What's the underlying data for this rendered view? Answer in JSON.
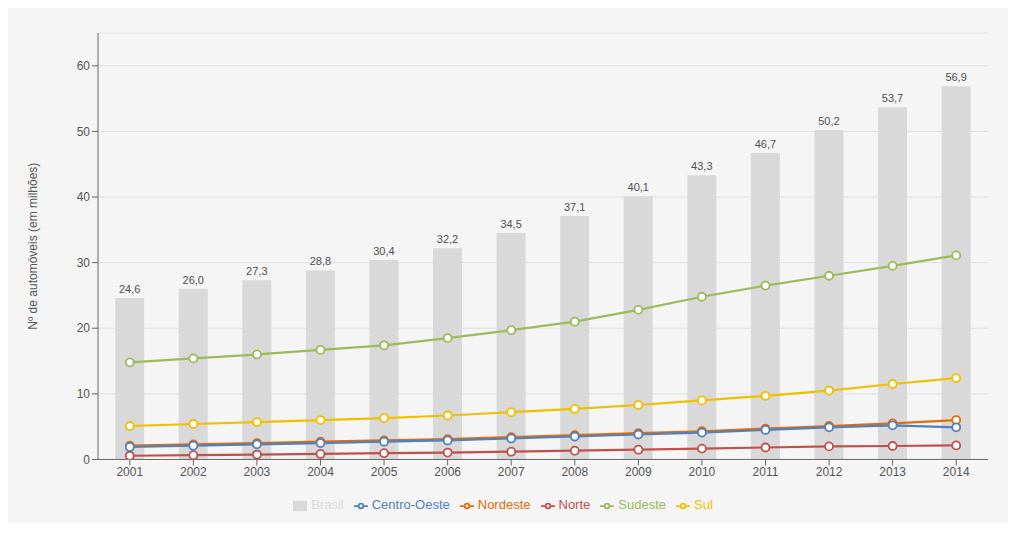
{
  "chart_data": {
    "type": "bar",
    "ylabel": "Nº de automóveis (em milhões)",
    "categories": [
      "2001",
      "2002",
      "2003",
      "2004",
      "2005",
      "2006",
      "2007",
      "2008",
      "2009",
      "2010",
      "2011",
      "2012",
      "2013",
      "2014"
    ],
    "series": [
      {
        "name": "Brasil",
        "type": "bar",
        "color": "#d9d9d9",
        "values": [
          24.6,
          26.0,
          27.3,
          28.8,
          30.4,
          32.2,
          34.5,
          37.1,
          40.1,
          43.3,
          46.7,
          50.2,
          53.7,
          56.9
        ],
        "value_labels": [
          "24,6",
          "26,0",
          "27,3",
          "28,8",
          "30,4",
          "32,2",
          "34,5",
          "37,1",
          "40,1",
          "43,3",
          "46,7",
          "50,2",
          "53,7",
          "56,9"
        ]
      },
      {
        "name": "Norte",
        "type": "line",
        "color": "#c0504d",
        "marker": "circle",
        "values": [
          0.56,
          0.65,
          0.74,
          0.84,
          0.95,
          1.05,
          1.18,
          1.33,
          1.49,
          1.65,
          1.82,
          1.99,
          2.05,
          2.13
        ]
      },
      {
        "name": "Nordeste",
        "type": "line",
        "color": "#e36c09",
        "marker": "circle",
        "values": [
          2.1,
          2.3,
          2.5,
          2.7,
          2.9,
          3.1,
          3.4,
          3.7,
          4.0,
          4.3,
          4.7,
          5.1,
          5.5,
          6.0
        ]
      },
      {
        "name": "Sudeste",
        "type": "line",
        "color": "#9bbb59",
        "marker": "circle",
        "values": [
          14.8,
          15.4,
          16.0,
          16.7,
          17.4,
          18.5,
          19.7,
          21.0,
          22.8,
          24.8,
          26.5,
          28.0,
          29.5,
          31.1
        ]
      },
      {
        "name": "Sul",
        "type": "line",
        "color": "#f0c000",
        "marker": "circle",
        "values": [
          5.1,
          5.4,
          5.7,
          6.0,
          6.3,
          6.7,
          7.2,
          7.7,
          8.3,
          9.0,
          9.7,
          10.5,
          11.5,
          12.4
        ]
      },
      {
        "name": "Centro-Oeste",
        "type": "line",
        "color": "#4f81bd",
        "marker": "circle",
        "values": [
          1.9,
          2.1,
          2.3,
          2.5,
          2.7,
          2.9,
          3.2,
          3.5,
          3.8,
          4.1,
          4.5,
          4.9,
          5.2,
          4.9
        ]
      }
    ],
    "ylim": [
      0,
      65
    ],
    "yticks": [
      0,
      10,
      20,
      30,
      40,
      50,
      60
    ],
    "grid": true,
    "legend": "bottom",
    "data_labels": true
  }
}
